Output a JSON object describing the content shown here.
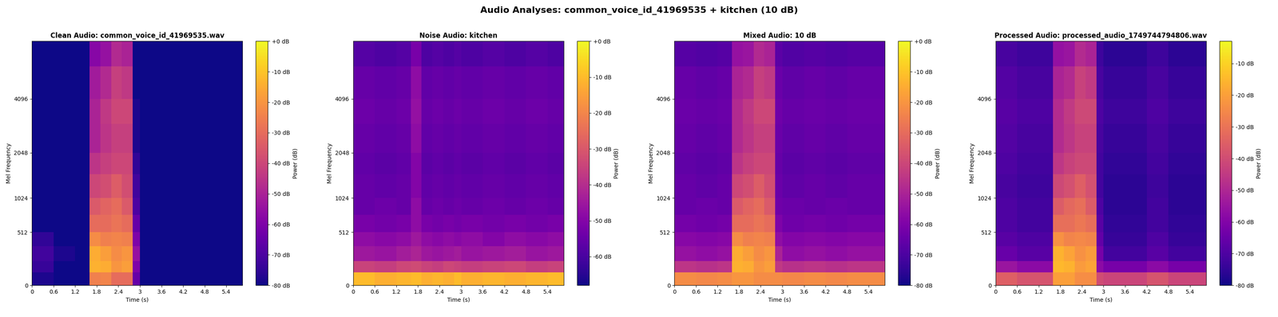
{
  "title": "Audio Analyses: common_voice_id_41969535 + kitchen (10 dB)",
  "chart_data": [
    {
      "type": "heatmap",
      "title": "Clean Audio: common_voice_id_41969535.wav",
      "color": "plasma",
      "x_label": "Time (s)",
      "y_label": "Mel Frequency",
      "x_edges": [
        0,
        0.6,
        1.2,
        1.6,
        1.9,
        2.2,
        2.5,
        2.8,
        3.0,
        3.6,
        4.2,
        4.8,
        5.4,
        5.85
      ],
      "y_edges": [
        0,
        100,
        200,
        350,
        512,
        750,
        1024,
        1500,
        2048,
        3000,
        4096,
        6000,
        8000
      ],
      "cells": [
        [
          -78,
          -80,
          -80,
          -25,
          -24,
          -30,
          -30,
          -65,
          -80,
          -80,
          -80,
          -80,
          -80
        ],
        [
          -74,
          -80,
          -80,
          -14,
          -15,
          -20,
          -18,
          -60,
          -80,
          -80,
          -80,
          -80,
          -80
        ],
        [
          -72,
          -78,
          -80,
          -15,
          -18,
          -22,
          -20,
          -55,
          -80,
          -80,
          -80,
          -80,
          -80
        ],
        [
          -75,
          -80,
          -80,
          -22,
          -25,
          -24,
          -25,
          -60,
          -80,
          -80,
          -80,
          -80,
          -80
        ],
        [
          -80,
          -80,
          -80,
          -30,
          -30,
          -28,
          -30,
          -65,
          -80,
          -80,
          -80,
          -80,
          -80
        ],
        [
          -80,
          -80,
          -80,
          -35,
          -32,
          -30,
          -35,
          -70,
          -80,
          -80,
          -80,
          -80,
          -80
        ],
        [
          -80,
          -80,
          -80,
          -40,
          -38,
          -34,
          -38,
          -72,
          -80,
          -80,
          -80,
          -80,
          -80
        ],
        [
          -80,
          -80,
          -80,
          -45,
          -42,
          -40,
          -40,
          -75,
          -80,
          -80,
          -80,
          -80,
          -80
        ],
        [
          -80,
          -80,
          -80,
          -50,
          -45,
          -42,
          -42,
          -78,
          -80,
          -80,
          -80,
          -80,
          -80
        ],
        [
          -80,
          -80,
          -80,
          -50,
          -44,
          -40,
          -40,
          -78,
          -80,
          -80,
          -80,
          -80,
          -80
        ],
        [
          -80,
          -80,
          -80,
          -52,
          -48,
          -42,
          -44,
          -80,
          -80,
          -80,
          -80,
          -80,
          -80
        ],
        [
          -80,
          -80,
          -80,
          -58,
          -55,
          -48,
          -50,
          -80,
          -80,
          -80,
          -80,
          -80,
          -80
        ]
      ],
      "xlim": [
        0,
        5.85
      ],
      "ylim": [
        0,
        8000
      ],
      "xticks": [
        0,
        0.6,
        1.2,
        1.8,
        2.4,
        3,
        3.6,
        4.2,
        4.8,
        5.4
      ],
      "yticks": [
        0,
        512,
        1024,
        2048,
        4096
      ],
      "colorbar": {
        "label": "Power (dB)",
        "range": [
          -80,
          0
        ],
        "ticks": [
          {
            "value": 0,
            "label": "+0 dB"
          },
          {
            "value": -10,
            "label": "-10 dB"
          },
          {
            "value": -20,
            "label": "-20 dB"
          },
          {
            "value": -30,
            "label": "-30 dB"
          },
          {
            "value": -40,
            "label": "-40 dB"
          },
          {
            "value": -50,
            "label": "-50 dB"
          },
          {
            "value": -60,
            "label": "-60 dB"
          },
          {
            "value": -70,
            "label": "-70 dB"
          },
          {
            "value": -80,
            "label": "-80 dB"
          }
        ]
      }
    },
    {
      "type": "heatmap",
      "title": "Noise Audio: kitchen",
      "color": "plasma",
      "x_label": "Time (s)",
      "y_label": "Mel Frequency",
      "x_edges": [
        0,
        0.6,
        1.2,
        1.6,
        1.9,
        2.2,
        2.5,
        2.8,
        3.0,
        3.6,
        4.2,
        4.8,
        5.4,
        5.85
      ],
      "y_edges": [
        0,
        100,
        200,
        350,
        512,
        750,
        1024,
        1500,
        2048,
        3000,
        4096,
        6000,
        8000
      ],
      "cells": [
        [
          -10,
          -12,
          -11,
          -10,
          -12,
          -11,
          -12,
          -10,
          -12,
          -11,
          -12,
          -11,
          -10
        ],
        [
          -35,
          -36,
          -34,
          -33,
          -35,
          -36,
          -34,
          -35,
          -36,
          -35,
          -34,
          -36,
          -35
        ],
        [
          -45,
          -46,
          -44,
          -42,
          -45,
          -46,
          -45,
          -44,
          -46,
          -45,
          -44,
          -46,
          -45
        ],
        [
          -48,
          -49,
          -48,
          -45,
          -48,
          -49,
          -48,
          -49,
          -48,
          -50,
          -48,
          -49,
          -48
        ],
        [
          -52,
          -53,
          -52,
          -48,
          -52,
          -53,
          -52,
          -53,
          -52,
          -53,
          -52,
          -53,
          -52
        ],
        [
          -55,
          -54,
          -55,
          -48,
          -55,
          -54,
          -55,
          -54,
          -55,
          -54,
          -55,
          -54,
          -55
        ],
        [
          -55,
          -56,
          -55,
          -50,
          -56,
          -55,
          -56,
          -55,
          -56,
          -55,
          -56,
          -55,
          -56
        ],
        [
          -56,
          -57,
          -56,
          -50,
          -57,
          -56,
          -57,
          -56,
          -57,
          -56,
          -57,
          -56,
          -57
        ],
        [
          -55,
          -56,
          -55,
          -48,
          -56,
          -55,
          -56,
          -55,
          -56,
          -55,
          -56,
          -55,
          -56
        ],
        [
          -54,
          -55,
          -54,
          -47,
          -55,
          -54,
          -55,
          -54,
          -55,
          -54,
          -55,
          -54,
          -55
        ],
        [
          -55,
          -56,
          -55,
          -48,
          -56,
          -55,
          -56,
          -55,
          -56,
          -55,
          -56,
          -55,
          -56
        ],
        [
          -58,
          -59,
          -58,
          -52,
          -59,
          -58,
          -59,
          -58,
          -59,
          -58,
          -59,
          -58,
          -59
        ]
      ],
      "xlim": [
        0,
        5.85
      ],
      "ylim": [
        0,
        8000
      ],
      "xticks": [
        0,
        0.6,
        1.2,
        1.8,
        2.4,
        3,
        3.6,
        4.2,
        4.8,
        5.4
      ],
      "yticks": [
        0,
        512,
        1024,
        2048,
        4096
      ],
      "colorbar": {
        "label": "Power (dB)",
        "range": [
          -68,
          0
        ],
        "ticks": [
          {
            "value": 0,
            "label": "+0 dB"
          },
          {
            "value": -10,
            "label": "-10 dB"
          },
          {
            "value": -20,
            "label": "-20 dB"
          },
          {
            "value": -30,
            "label": "-30 dB"
          },
          {
            "value": -40,
            "label": "-40 dB"
          },
          {
            "value": -50,
            "label": "-50 dB"
          },
          {
            "value": -60,
            "label": "-60 dB"
          }
        ]
      }
    },
    {
      "type": "heatmap",
      "title": "Mixed Audio: 10 dB",
      "color": "plasma",
      "x_label": "Time (s)",
      "y_label": "Mel Frequency",
      "x_edges": [
        0,
        0.6,
        1.2,
        1.6,
        1.9,
        2.2,
        2.5,
        2.8,
        3.0,
        3.6,
        4.2,
        4.8,
        5.4,
        5.85
      ],
      "y_edges": [
        0,
        100,
        200,
        350,
        512,
        750,
        1024,
        1500,
        2048,
        3000,
        4096,
        6000,
        8000
      ],
      "cells": [
        [
          -22,
          -23,
          -22,
          -20,
          -20,
          -22,
          -22,
          -22,
          -23,
          -22,
          -23,
          -22,
          -22
        ],
        [
          -45,
          -46,
          -45,
          -14,
          -15,
          -20,
          -18,
          -44,
          -46,
          -45,
          -46,
          -45,
          -45
        ],
        [
          -55,
          -56,
          -55,
          -15,
          -18,
          -22,
          -20,
          -50,
          -56,
          -55,
          -56,
          -55,
          -55
        ],
        [
          -58,
          -59,
          -58,
          -22,
          -25,
          -24,
          -25,
          -56,
          -59,
          -58,
          -59,
          -58,
          -58
        ],
        [
          -62,
          -63,
          -62,
          -30,
          -30,
          -28,
          -30,
          -60,
          -63,
          -62,
          -63,
          -62,
          -62
        ],
        [
          -65,
          -64,
          -65,
          -35,
          -32,
          -30,
          -35,
          -63,
          -64,
          -65,
          -64,
          -65,
          -65
        ],
        [
          -65,
          -66,
          -65,
          -40,
          -38,
          -34,
          -38,
          -64,
          -66,
          -65,
          -66,
          -65,
          -65
        ],
        [
          -66,
          -67,
          -66,
          -45,
          -42,
          -40,
          -40,
          -65,
          -67,
          -66,
          -67,
          -66,
          -66
        ],
        [
          -65,
          -66,
          -65,
          -48,
          -45,
          -42,
          -42,
          -64,
          -66,
          -65,
          -66,
          -65,
          -65
        ],
        [
          -64,
          -65,
          -64,
          -48,
          -44,
          -40,
          -40,
          -63,
          -65,
          -64,
          -65,
          -64,
          -64
        ],
        [
          -65,
          -66,
          -65,
          -50,
          -48,
          -42,
          -44,
          -64,
          -66,
          -65,
          -66,
          -65,
          -65
        ],
        [
          -68,
          -69,
          -68,
          -55,
          -54,
          -48,
          -50,
          -67,
          -69,
          -68,
          -69,
          -68,
          -68
        ]
      ],
      "xlim": [
        0,
        5.85
      ],
      "ylim": [
        0,
        8000
      ],
      "xticks": [
        0,
        0.6,
        1.2,
        1.8,
        2.4,
        3,
        3.6,
        4.2,
        4.8,
        5.4
      ],
      "yticks": [
        0,
        512,
        1024,
        2048,
        4096
      ],
      "colorbar": {
        "label": "Power (dB)",
        "range": [
          -80,
          0
        ],
        "ticks": [
          {
            "value": 0,
            "label": "+0 dB"
          },
          {
            "value": -10,
            "label": "-10 dB"
          },
          {
            "value": -20,
            "label": "-20 dB"
          },
          {
            "value": -30,
            "label": "-30 dB"
          },
          {
            "value": -40,
            "label": "-40 dB"
          },
          {
            "value": -50,
            "label": "-50 dB"
          },
          {
            "value": -60,
            "label": "-60 dB"
          },
          {
            "value": -70,
            "label": "-70 dB"
          },
          {
            "value": -80,
            "label": "-80 dB"
          }
        ]
      }
    },
    {
      "type": "heatmap",
      "title": "Processed Audio: processed_audio_1749744794806.wav",
      "color": "plasma",
      "x_label": "Time (s)",
      "y_label": "Mel Frequency",
      "x_edges": [
        0,
        0.6,
        1.2,
        1.6,
        1.9,
        2.2,
        2.5,
        2.8,
        3.0,
        3.6,
        4.2,
        4.8,
        5.4,
        5.85
      ],
      "y_edges": [
        0,
        100,
        200,
        350,
        512,
        750,
        1024,
        1500,
        2048,
        3000,
        4096,
        6000,
        8000
      ],
      "cells": [
        [
          -35,
          -38,
          -38,
          -20,
          -20,
          -24,
          -24,
          -40,
          -42,
          -42,
          -38,
          -42,
          -42
        ],
        [
          -55,
          -58,
          -58,
          -15,
          -16,
          -21,
          -19,
          -58,
          -62,
          -62,
          -58,
          -62,
          -62
        ],
        [
          -65,
          -68,
          -68,
          -16,
          -19,
          -23,
          -21,
          -62,
          -72,
          -72,
          -68,
          -72,
          -72
        ],
        [
          -68,
          -70,
          -70,
          -23,
          -26,
          -25,
          -26,
          -66,
          -74,
          -74,
          -70,
          -74,
          -74
        ],
        [
          -70,
          -72,
          -72,
          -31,
          -31,
          -29,
          -31,
          -68,
          -75,
          -75,
          -72,
          -75,
          -75
        ],
        [
          -70,
          -72,
          -72,
          -36,
          -33,
          -31,
          -36,
          -70,
          -76,
          -76,
          -72,
          -76,
          -76
        ],
        [
          -71,
          -73,
          -73,
          -41,
          -39,
          -35,
          -39,
          -72,
          -76,
          -76,
          -73,
          -76,
          -76
        ],
        [
          -70,
          -72,
          -72,
          -46,
          -43,
          -41,
          -41,
          -72,
          -75,
          -75,
          -72,
          -75,
          -75
        ],
        [
          -69,
          -71,
          -71,
          -49,
          -46,
          -43,
          -43,
          -71,
          -74,
          -74,
          -71,
          -74,
          -74
        ],
        [
          -68,
          -70,
          -70,
          -49,
          -45,
          -41,
          -41,
          -70,
          -73,
          -73,
          -70,
          -73,
          -73
        ],
        [
          -69,
          -71,
          -71,
          -51,
          -49,
          -43,
          -45,
          -71,
          -74,
          -74,
          -71,
          -74,
          -74
        ],
        [
          -71,
          -73,
          -73,
          -56,
          -55,
          -49,
          -51,
          -73,
          -76,
          -76,
          -73,
          -76,
          -76
        ]
      ],
      "xlim": [
        0,
        5.85
      ],
      "ylim": [
        0,
        8000
      ],
      "xticks": [
        0,
        0.6,
        1.2,
        1.8,
        2.4,
        3,
        3.6,
        4.2,
        4.8,
        5.4
      ],
      "yticks": [
        0,
        512,
        1024,
        2048,
        4096
      ],
      "colorbar": {
        "label": "Power (dB)",
        "range": [
          -80,
          -3
        ],
        "ticks": [
          {
            "value": -10,
            "label": "-10 dB"
          },
          {
            "value": -20,
            "label": "-20 dB"
          },
          {
            "value": -30,
            "label": "-30 dB"
          },
          {
            "value": -40,
            "label": "-40 dB"
          },
          {
            "value": -50,
            "label": "-50 dB"
          },
          {
            "value": -60,
            "label": "-60 dB"
          },
          {
            "value": -70,
            "label": "-70 dB"
          },
          {
            "value": -80,
            "label": "-80 dB"
          }
        ]
      }
    }
  ]
}
